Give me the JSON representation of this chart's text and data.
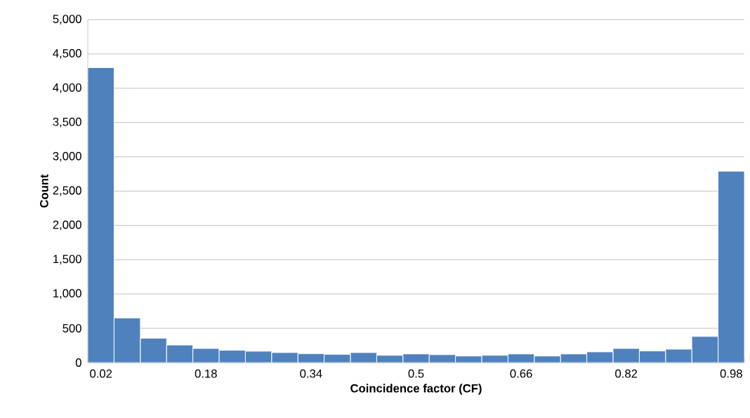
{
  "chart_data": {
    "type": "histogram",
    "xlabel": "Coincidence factor (CF)",
    "ylabel": "Count",
    "bins": [
      0,
      0.04,
      0.08,
      0.12,
      0.16,
      0.2,
      0.24,
      0.28,
      0.32,
      0.36,
      0.4,
      0.44,
      0.48,
      0.52,
      0.56,
      0.6,
      0.64,
      0.68,
      0.72,
      0.76,
      0.8,
      0.84,
      0.88,
      0.92,
      0.96,
      1
    ],
    "values": [
      4300,
      650,
      355,
      255,
      205,
      180,
      165,
      145,
      130,
      120,
      145,
      105,
      125,
      115,
      95,
      105,
      125,
      95,
      125,
      155,
      205,
      170,
      195,
      380,
      2790
    ],
    "color": "#4f81bd",
    "xlim": [
      0,
      1
    ],
    "xticks": [
      0.02,
      0.18,
      0.34,
      0.5,
      0.66,
      0.82,
      0.98
    ],
    "ylim": [
      0,
      5000
    ],
    "yticks": [
      0,
      500,
      {
        "value": 1000,
        "label": "1,000"
      },
      {
        "value": 1500,
        "label": "1,500"
      },
      {
        "value": 2000,
        "label": "2,000"
      },
      {
        "value": 2500,
        "label": "2,500"
      },
      {
        "value": 3000,
        "label": "3,000"
      },
      {
        "value": 3500,
        "label": "3,500"
      },
      {
        "value": 4000,
        "label": "4,000"
      },
      {
        "value": 4500,
        "label": "4,500"
      },
      {
        "value": 5000,
        "label": "5,000"
      }
    ],
    "grid": "y"
  }
}
